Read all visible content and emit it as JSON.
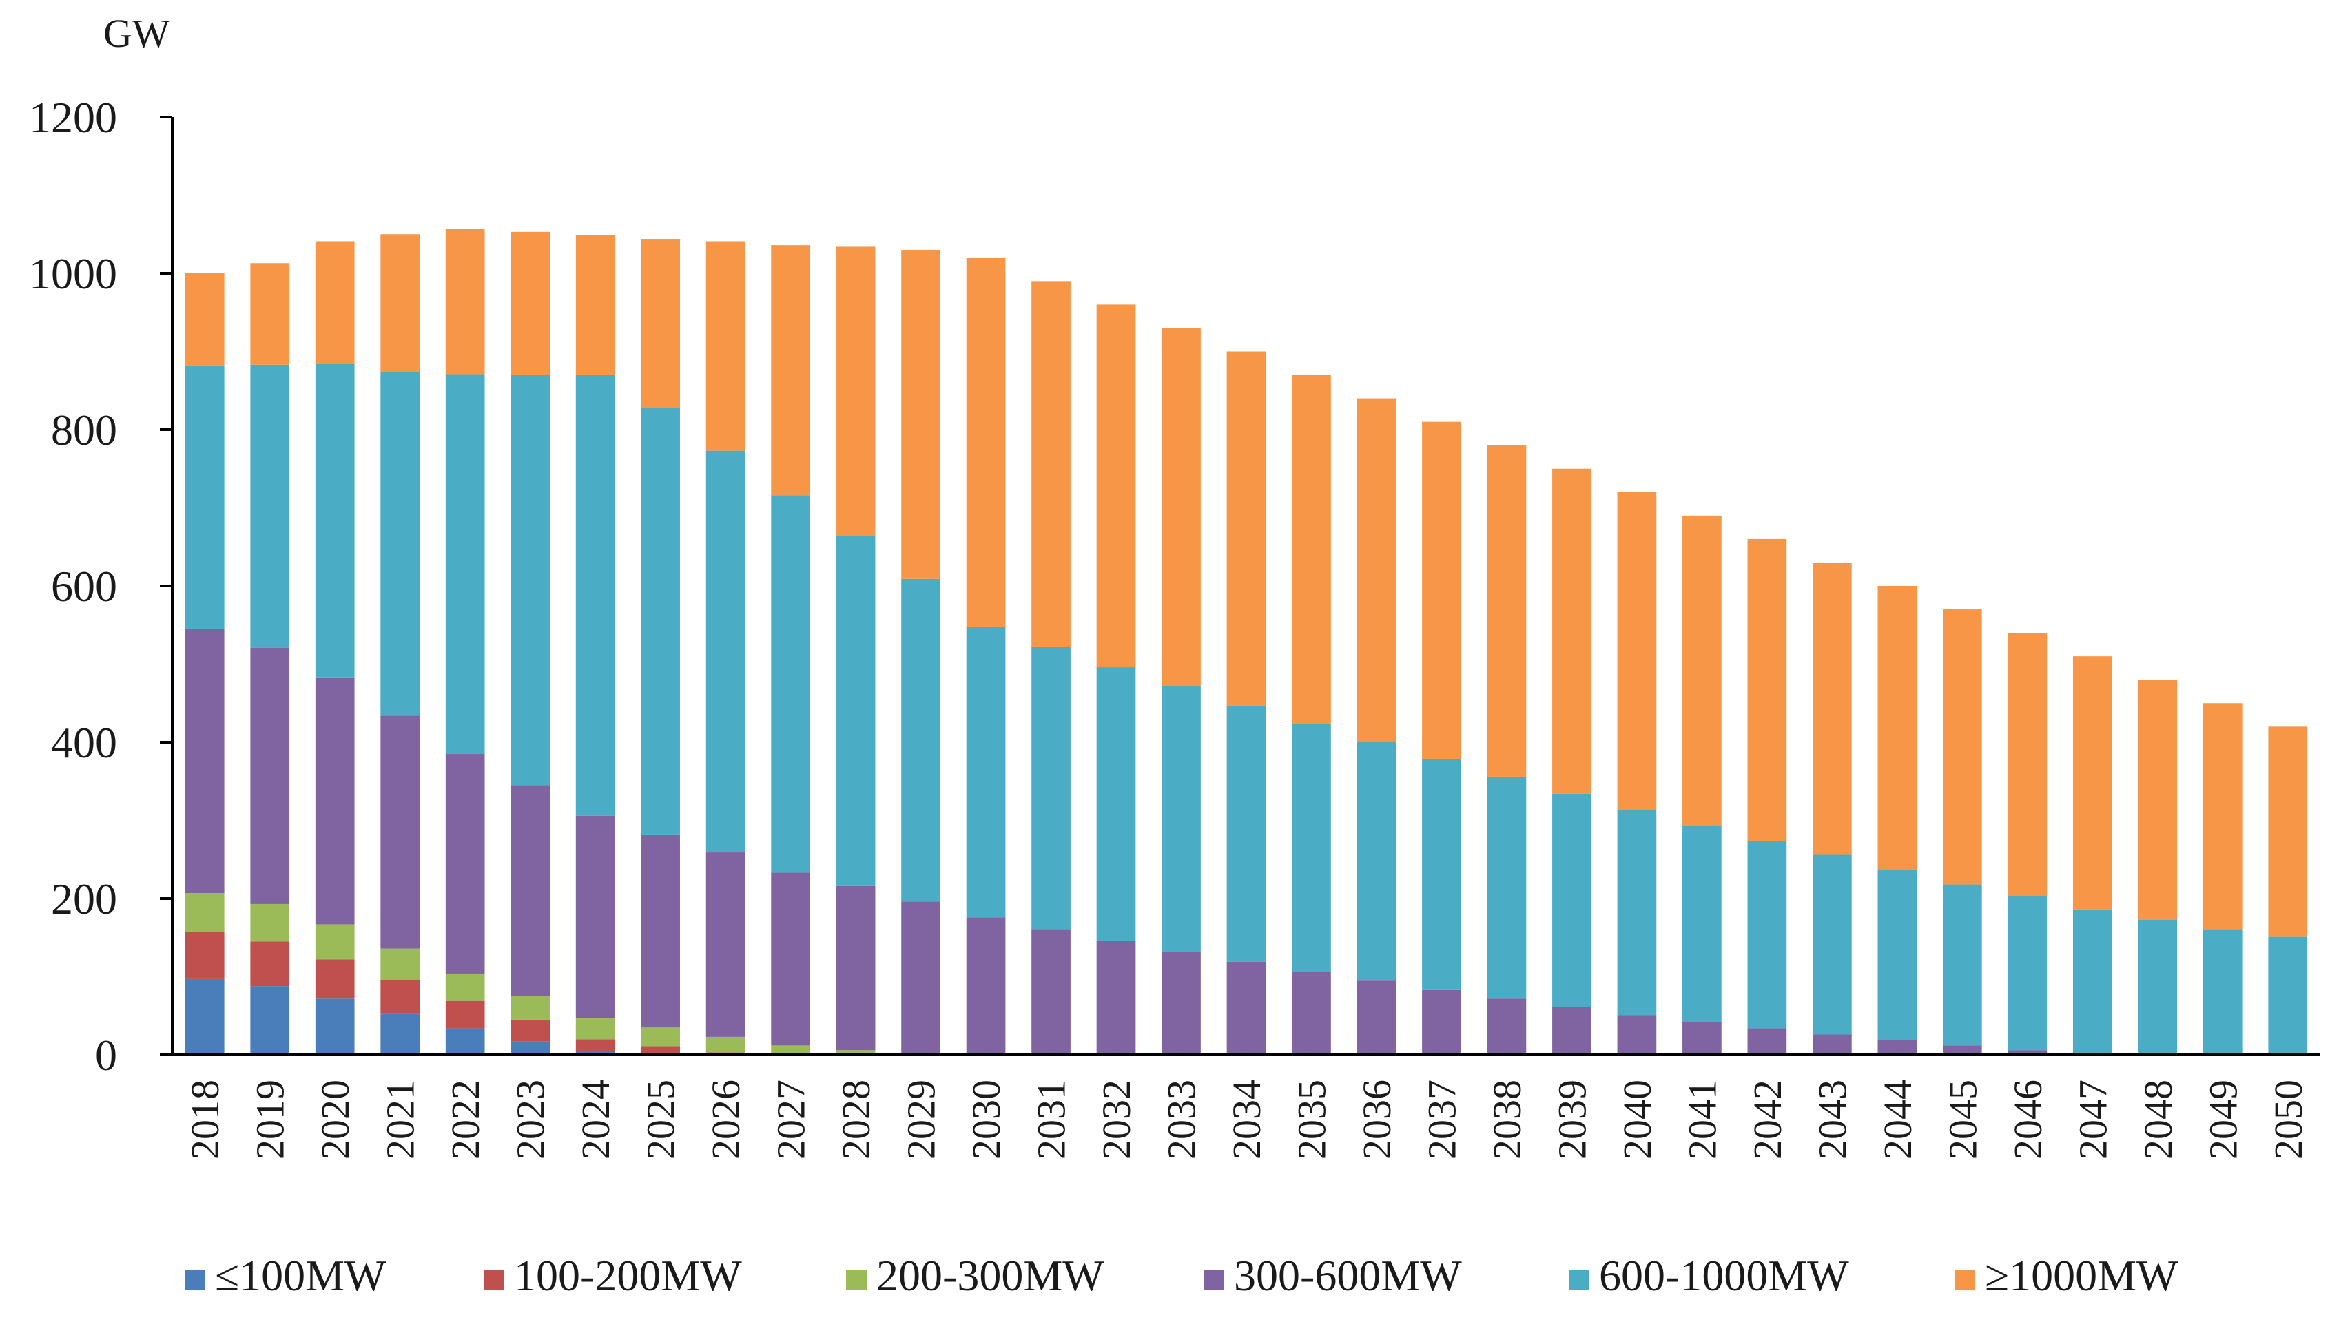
{
  "chart_data": {
    "type": "bar",
    "stacked": true,
    "title": "",
    "xlabel": "",
    "ylabel": "GW",
    "ylim": [
      0,
      1200
    ],
    "yticks": [
      "0",
      "200",
      "400",
      "600",
      "800",
      "1000",
      "1200"
    ],
    "grid": false,
    "legend_position": "bottom",
    "categories": [
      "2018",
      "2019",
      "2020",
      "2021",
      "2022",
      "2023",
      "2024",
      "2025",
      "2026",
      "2027",
      "2028",
      "2029",
      "2030",
      "2031",
      "2032",
      "2033",
      "2034",
      "2035",
      "2036",
      "2037",
      "2038",
      "2039",
      "2040",
      "2041",
      "2042",
      "2043",
      "2044",
      "2045",
      "2046",
      "2047",
      "2048",
      "2049",
      "2050"
    ],
    "series": [
      {
        "name": "≤100MW",
        "color": "#4a7ebb",
        "values": [
          97,
          88,
          72,
          53,
          34,
          17,
          5,
          2,
          0,
          0,
          0,
          0,
          0,
          0,
          0,
          0,
          0,
          0,
          0,
          0,
          0,
          0,
          0,
          0,
          0,
          0,
          0,
          0,
          0,
          0,
          0,
          0,
          0
        ]
      },
      {
        "name": "100-200MW",
        "color": "#c0504d",
        "values": [
          60,
          57,
          50,
          43,
          35,
          28,
          15,
          9,
          3,
          1,
          0,
          0,
          0,
          0,
          0,
          0,
          0,
          0,
          0,
          0,
          0,
          0,
          0,
          0,
          0,
          0,
          0,
          0,
          0,
          0,
          0,
          0,
          0
        ]
      },
      {
        "name": "200-300MW",
        "color": "#9bbb59",
        "values": [
          50,
          48,
          45,
          40,
          35,
          30,
          27,
          24,
          20,
          11,
          6,
          0,
          0,
          0,
          0,
          0,
          0,
          0,
          0,
          0,
          0,
          0,
          0,
          0,
          0,
          0,
          0,
          0,
          0,
          0,
          0,
          0,
          0
        ]
      },
      {
        "name": "300-600MW",
        "color": "#8064a2",
        "values": [
          338,
          328,
          316,
          298,
          281,
          270,
          259,
          247,
          236,
          221,
          210,
          196,
          176,
          161,
          146,
          132,
          119,
          106,
          95,
          83,
          72,
          61,
          51,
          42,
          34,
          26,
          19,
          12,
          6,
          0,
          0,
          0,
          0
        ]
      },
      {
        "name": "600-1000MW",
        "color": "#4bacc6",
        "values": [
          337,
          362,
          401,
          440,
          486,
          525,
          564,
          546,
          514,
          483,
          448,
          413,
          372,
          361,
          350,
          340,
          328,
          317,
          305,
          295,
          284,
          273,
          263,
          251,
          240,
          230,
          218,
          206,
          197,
          186,
          173,
          161,
          151
        ]
      },
      {
        "name": "≥1000MW",
        "color": "#f79646",
        "values": [
          118,
          130,
          157,
          176,
          186,
          183,
          179,
          216,
          268,
          320,
          370,
          421,
          472,
          468,
          464,
          458,
          453,
          447,
          440,
          432,
          424,
          416,
          406,
          397,
          386,
          374,
          363,
          352,
          337,
          324,
          307,
          289,
          269
        ]
      }
    ]
  }
}
